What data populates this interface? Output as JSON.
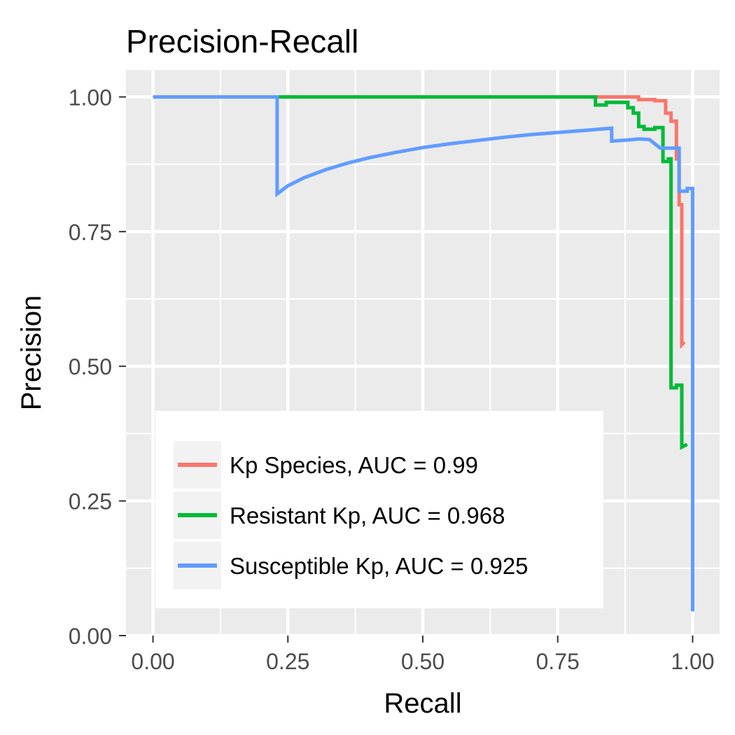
{
  "chart_data": {
    "type": "line",
    "title": "Precision-Recall",
    "xlabel": "Recall",
    "ylabel": "Precision",
    "xlim": [
      -0.05,
      1.05
    ],
    "ylim": [
      0,
      1.05
    ],
    "xticks": [
      0,
      0.25,
      0.5,
      0.75,
      1
    ],
    "yticks": [
      0,
      0.25,
      0.5,
      0.75,
      1
    ],
    "xtick_labels": [
      "0.00",
      "0.25",
      "0.50",
      "0.75",
      "1.00"
    ],
    "ytick_labels": [
      "0.00",
      "0.25",
      "0.50",
      "0.75",
      "1.00"
    ],
    "grid": true,
    "legend_position": "bottom-left",
    "series": [
      {
        "name": "Kp Species, AUC = 0.99",
        "color": "#F8766D",
        "x": [
          0.0,
          0.82,
          0.9,
          0.9,
          0.93,
          0.93,
          0.95,
          0.95,
          0.96,
          0.96,
          0.97,
          0.97,
          0.975,
          0.975,
          0.98,
          0.98,
          0.985
        ],
        "y": [
          1.0,
          1.0,
          1.0,
          0.995,
          0.995,
          0.993,
          0.993,
          0.97,
          0.97,
          0.955,
          0.955,
          0.885,
          0.885,
          0.8,
          0.8,
          0.54,
          0.545
        ]
      },
      {
        "name": "Resistant Kp, AUC = 0.968",
        "color": "#00BA38",
        "x": [
          0.0,
          0.82,
          0.82,
          0.84,
          0.84,
          0.88,
          0.88,
          0.89,
          0.89,
          0.9,
          0.9,
          0.91,
          0.91,
          0.93,
          0.93,
          0.945,
          0.945,
          0.955,
          0.955,
          0.96,
          0.96,
          0.97,
          0.97,
          0.98,
          0.98,
          0.99
        ],
        "y": [
          1.0,
          1.0,
          0.985,
          0.985,
          0.99,
          0.99,
          0.98,
          0.98,
          0.97,
          0.97,
          0.945,
          0.945,
          0.94,
          0.94,
          0.943,
          0.943,
          0.88,
          0.88,
          0.885,
          0.885,
          0.46,
          0.46,
          0.465,
          0.465,
          0.35,
          0.355
        ]
      },
      {
        "name": "Susceptible Kp, AUC = 0.925",
        "color": "#619CFF",
        "x": [
          0.0,
          0.23,
          0.23,
          0.25,
          0.28,
          0.32,
          0.36,
          0.4,
          0.45,
          0.5,
          0.55,
          0.6,
          0.65,
          0.7,
          0.75,
          0.8,
          0.85,
          0.85,
          0.88,
          0.9,
          0.92,
          0.94,
          0.96,
          0.97,
          0.975,
          0.975,
          0.99,
          0.99,
          1.0,
          1.0
        ],
        "y": [
          1.0,
          1.0,
          0.82,
          0.835,
          0.85,
          0.865,
          0.877,
          0.887,
          0.897,
          0.906,
          0.913,
          0.919,
          0.925,
          0.93,
          0.934,
          0.938,
          0.942,
          0.918,
          0.92,
          0.922,
          0.921,
          0.905,
          0.905,
          0.905,
          0.905,
          0.825,
          0.825,
          0.83,
          0.83,
          0.045
        ]
      }
    ]
  }
}
